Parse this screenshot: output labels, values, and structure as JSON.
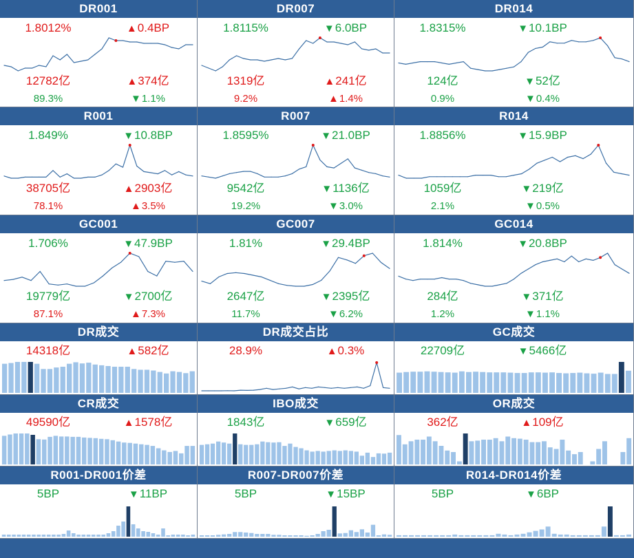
{
  "colors": {
    "header": "#2f5f98",
    "up": "#e01a1a",
    "down": "#1aa146",
    "line": "#3a6ea5",
    "bar": "#9ec3e8",
    "bar_highlight": "#1f3f66",
    "peak_dot": "#e01a1a"
  },
  "panels": [
    {
      "title": "DR001",
      "type": "line",
      "rate": "1.8012%",
      "rate_dir": "up",
      "change": "0.4BP",
      "change_dir": "up",
      "volume": "12782亿",
      "volume_dir": "up",
      "vol_change": "374亿",
      "vol_change_dir": "up",
      "share": "89.3%",
      "share_dir": "down",
      "share_change": "1.1%",
      "share_change_dir": "down",
      "chart_data": {
        "type": "line",
        "values": [
          1.7,
          1.69,
          1.66,
          1.68,
          1.68,
          1.7,
          1.69,
          1.77,
          1.74,
          1.78,
          1.72,
          1.73,
          1.74,
          1.78,
          1.82,
          1.9,
          1.88,
          1.88,
          1.87,
          1.87,
          1.86,
          1.86,
          1.86,
          1.85,
          1.83,
          1.82,
          1.85,
          1.85
        ],
        "peak_index": 16
      }
    },
    {
      "title": "DR007",
      "type": "line",
      "rate": "1.8115%",
      "rate_dir": "down",
      "change": "6.0BP",
      "change_dir": "down",
      "volume": "1319亿",
      "volume_dir": "up",
      "vol_change": "241亿",
      "vol_change_dir": "up",
      "share": "9.2%",
      "share_dir": "up",
      "share_change": "1.4%",
      "share_change_dir": "up",
      "chart_data": {
        "type": "line",
        "values": [
          1.72,
          1.7,
          1.68,
          1.71,
          1.76,
          1.79,
          1.77,
          1.76,
          1.76,
          1.75,
          1.76,
          1.77,
          1.76,
          1.77,
          1.84,
          1.9,
          1.88,
          1.92,
          1.89,
          1.89,
          1.88,
          1.87,
          1.89,
          1.84,
          1.83,
          1.84,
          1.81,
          1.81
        ],
        "peak_index": 17
      }
    },
    {
      "title": "DR014",
      "type": "line",
      "rate": "1.8315%",
      "rate_dir": "down",
      "change": "10.1BP",
      "change_dir": "down",
      "volume": "124亿",
      "volume_dir": "down",
      "vol_change": "52亿",
      "vol_change_dir": "down",
      "share": "0.9%",
      "share_dir": "down",
      "share_change": "0.4%",
      "share_change_dir": "down",
      "chart_data": {
        "type": "line",
        "values": [
          1.76,
          1.75,
          1.76,
          1.77,
          1.77,
          1.77,
          1.76,
          1.75,
          1.76,
          1.77,
          1.72,
          1.71,
          1.7,
          1.7,
          1.71,
          1.72,
          1.73,
          1.77,
          1.84,
          1.87,
          1.88,
          1.92,
          1.91,
          1.91,
          1.93,
          1.92,
          1.92,
          1.93,
          1.95,
          1.89,
          1.8,
          1.79,
          1.77
        ],
        "peak_index": 28
      }
    },
    {
      "title": "R001",
      "type": "line",
      "rate": "1.849%",
      "rate_dir": "down",
      "change": "10.8BP",
      "change_dir": "down",
      "volume": "38705亿",
      "volume_dir": "up",
      "vol_change": "2903亿",
      "vol_change_dir": "up",
      "share": "78.1%",
      "share_dir": "up",
      "share_change": "3.5%",
      "share_change_dir": "up",
      "chart_data": {
        "type": "line",
        "values": [
          1.68,
          1.66,
          1.66,
          1.67,
          1.67,
          1.67,
          1.67,
          1.73,
          1.67,
          1.7,
          1.66,
          1.66,
          1.67,
          1.67,
          1.69,
          1.73,
          1.79,
          1.76,
          1.96,
          1.77,
          1.72,
          1.71,
          1.7,
          1.73,
          1.69,
          1.72,
          1.69,
          1.68
        ],
        "peak_index": 18
      }
    },
    {
      "title": "R007",
      "type": "line",
      "rate": "1.8595%",
      "rate_dir": "down",
      "change": "21.0BP",
      "change_dir": "down",
      "volume": "9542亿",
      "volume_dir": "down",
      "vol_change": "1136亿",
      "vol_change_dir": "down",
      "share": "19.2%",
      "share_dir": "down",
      "share_change": "3.0%",
      "share_change_dir": "down",
      "chart_data": {
        "type": "line",
        "values": [
          1.8,
          1.79,
          1.78,
          1.8,
          1.82,
          1.83,
          1.84,
          1.84,
          1.82,
          1.79,
          1.79,
          1.79,
          1.8,
          1.82,
          1.86,
          1.88,
          2.07,
          1.94,
          1.88,
          1.87,
          1.91,
          1.95,
          1.87,
          1.85,
          1.83,
          1.82,
          1.8,
          1.79
        ],
        "peak_index": 16
      }
    },
    {
      "title": "R014",
      "type": "line",
      "rate": "1.8856%",
      "rate_dir": "down",
      "change": "15.9BP",
      "change_dir": "down",
      "volume": "1059亿",
      "volume_dir": "down",
      "vol_change": "219亿",
      "vol_change_dir": "down",
      "share": "2.1%",
      "share_dir": "down",
      "share_change": "0.5%",
      "share_change_dir": "down",
      "chart_data": {
        "type": "line",
        "values": [
          1.84,
          1.82,
          1.82,
          1.82,
          1.83,
          1.83,
          1.83,
          1.83,
          1.83,
          1.83,
          1.84,
          1.84,
          1.84,
          1.83,
          1.83,
          1.84,
          1.85,
          1.88,
          1.92,
          1.94,
          1.96,
          1.93,
          1.96,
          1.97,
          1.95,
          1.98,
          2.04,
          1.92,
          1.86,
          1.85,
          1.84
        ],
        "peak_index": 26
      }
    },
    {
      "title": "GC001",
      "type": "line",
      "rate": "1.706%",
      "rate_dir": "down",
      "change": "47.9BP",
      "change_dir": "down",
      "volume": "19779亿",
      "volume_dir": "down",
      "vol_change": "2700亿",
      "vol_change_dir": "down",
      "share": "87.1%",
      "share_dir": "up",
      "share_change": "7.3%",
      "share_change_dir": "up",
      "chart_data": {
        "type": "line",
        "values": [
          1.6,
          1.61,
          1.63,
          1.6,
          1.68,
          1.57,
          1.56,
          1.57,
          1.55,
          1.55,
          1.58,
          1.64,
          1.71,
          1.76,
          1.84,
          1.81,
          1.68,
          1.64,
          1.77,
          1.76,
          1.77,
          1.68
        ],
        "peak_index": 14
      }
    },
    {
      "title": "GC007",
      "type": "line",
      "rate": "1.81%",
      "rate_dir": "down",
      "change": "29.4BP",
      "change_dir": "down",
      "volume": "2647亿",
      "volume_dir": "down",
      "vol_change": "2395亿",
      "vol_change_dir": "down",
      "share": "11.7%",
      "share_dir": "down",
      "share_change": "6.2%",
      "share_change_dir": "down",
      "chart_data": {
        "type": "line",
        "values": [
          1.65,
          1.62,
          1.7,
          1.74,
          1.75,
          1.74,
          1.72,
          1.7,
          1.66,
          1.62,
          1.6,
          1.59,
          1.59,
          1.61,
          1.66,
          1.77,
          1.93,
          1.9,
          1.86,
          1.95,
          1.98,
          1.87,
          1.8
        ],
        "peak_index": 19
      }
    },
    {
      "title": "GC014",
      "type": "line",
      "rate": "1.814%",
      "rate_dir": "down",
      "change": "20.8BP",
      "change_dir": "down",
      "volume": "284亿",
      "volume_dir": "down",
      "vol_change": "371亿",
      "vol_change_dir": "down",
      "share": "1.2%",
      "share_dir": "down",
      "share_change": "1.1%",
      "share_change_dir": "down",
      "chart_data": {
        "type": "line",
        "values": [
          1.72,
          1.7,
          1.69,
          1.7,
          1.7,
          1.7,
          1.71,
          1.7,
          1.7,
          1.69,
          1.67,
          1.66,
          1.65,
          1.65,
          1.66,
          1.67,
          1.7,
          1.74,
          1.77,
          1.8,
          1.82,
          1.83,
          1.84,
          1.82,
          1.86,
          1.82,
          1.84,
          1.83,
          1.85,
          1.88,
          1.8,
          1.77,
          1.74
        ],
        "peak_index": 28
      }
    },
    {
      "title": "DR成交",
      "type": "bar",
      "value": "14318亿",
      "value_dir": "up",
      "change": "582亿",
      "change_dir": "up",
      "chart_data": {
        "type": "bar",
        "values": [
          78,
          80,
          83,
          83,
          83,
          78,
          64,
          64,
          68,
          70,
          78,
          82,
          79,
          81,
          76,
          74,
          72,
          70,
          70,
          70,
          64,
          62,
          62,
          60,
          56,
          52,
          58,
          56,
          53,
          58
        ],
        "highlight_index": 4
      }
    },
    {
      "title": "DR成交占比",
      "type": "line",
      "value": "28.9%",
      "value_dir": "up",
      "change": "0.3%",
      "change_dir": "up",
      "chart_data": {
        "type": "line",
        "values": [
          7.0,
          7.0,
          7.0,
          7.0,
          7.1,
          7.0,
          7.5,
          7.3,
          7.5,
          8.0,
          9.0,
          8.0,
          8.5,
          9.0,
          10.0,
          8.5,
          9.5,
          9.0,
          10.0,
          9.5,
          9.0,
          9.5,
          9.0,
          9.5,
          10.0,
          9.0,
          11.0,
          29.0,
          9.5,
          9.0
        ],
        "peak_index": 27
      }
    },
    {
      "title": "GC成交",
      "type": "bar",
      "value": "22709亿",
      "value_dir": "down",
      "change": "5466亿",
      "change_dir": "down",
      "chart_data": {
        "type": "bar",
        "values": [
          62,
          64,
          65,
          65,
          66,
          65,
          64,
          63,
          62,
          66,
          64,
          65,
          64,
          63,
          63,
          63,
          62,
          61,
          61,
          63,
          63,
          62,
          63,
          61,
          60,
          61,
          62,
          60,
          59,
          62,
          58,
          58,
          95,
          68
        ],
        "highlight_index": 32
      }
    },
    {
      "title": "CR成交",
      "type": "bar",
      "value": "49590亿",
      "value_dir": "up",
      "change": "1578亿",
      "change_dir": "up",
      "chart_data": {
        "type": "bar",
        "values": [
          85,
          89,
          92,
          92,
          92,
          88,
          75,
          74,
          82,
          85,
          83,
          83,
          82,
          82,
          80,
          79,
          78,
          76,
          75,
          72,
          68,
          65,
          64,
          62,
          60,
          58,
          55,
          48,
          42,
          37,
          40,
          33,
          55,
          55
        ],
        "highlight_index": 5
      }
    },
    {
      "title": "IBO成交",
      "type": "bar",
      "value": "1843亿",
      "value_dir": "down",
      "change": "659亿",
      "change_dir": "down",
      "chart_data": {
        "type": "bar",
        "values": [
          58,
          60,
          62,
          68,
          65,
          62,
          92,
          60,
          58,
          58,
          60,
          68,
          66,
          65,
          66,
          55,
          62,
          52,
          48,
          42,
          38,
          40,
          38,
          40,
          42,
          40,
          42,
          40,
          38,
          26,
          35,
          22,
          33,
          32,
          35
        ],
        "highlight_index": 6
      }
    },
    {
      "title": "OR成交",
      "type": "bar",
      "value": "362亿",
      "value_dir": "up",
      "change": "109亿",
      "change_dir": "up",
      "chart_data": {
        "type": "bar",
        "values": [
          95,
          65,
          75,
          80,
          80,
          90,
          75,
          60,
          45,
          40,
          10,
          100,
          75,
          77,
          80,
          80,
          85,
          75,
          90,
          85,
          83,
          80,
          72,
          72,
          75,
          55,
          50,
          80,
          45,
          33,
          40,
          0,
          10,
          50,
          75,
          0,
          0,
          40,
          85
        ],
        "highlight_index": 11
      }
    },
    {
      "title": "R001-DR001价差",
      "type": "bar",
      "value": "5BP",
      "value_dir": "down",
      "change": "11BP",
      "change_dir": "down",
      "chart_data": {
        "type": "bar",
        "values": [
          3,
          3,
          3,
          3,
          3,
          3,
          3,
          3,
          3,
          3,
          3,
          3,
          4,
          9,
          5,
          3,
          3,
          3,
          3,
          3,
          3,
          5,
          8,
          16,
          22,
          44,
          18,
          12,
          8,
          7,
          5,
          3,
          12,
          2,
          3,
          3,
          3,
          2,
          3
        ],
        "highlight_index": 25
      }
    },
    {
      "title": "R007-DR007价差",
      "type": "bar",
      "value": "5BP",
      "value_dir": "down",
      "change": "15BP",
      "change_dir": "down",
      "chart_data": {
        "type": "bar",
        "values": [
          3,
          3,
          3,
          4,
          5,
          6,
          10,
          10,
          9,
          8,
          6,
          6,
          6,
          4,
          4,
          3,
          3,
          3,
          3,
          2,
          3,
          6,
          12,
          15,
          66,
          7,
          8,
          14,
          10,
          16,
          9,
          26,
          3,
          5,
          4
        ],
        "highlight_index": 24
      }
    },
    {
      "title": "R014-DR014价差",
      "type": "bar",
      "value": "5BP",
      "value_dir": "down",
      "change": "6BP",
      "change_dir": "down",
      "chart_data": {
        "type": "bar",
        "values": [
          2,
          2,
          2,
          2,
          2,
          2,
          2,
          2,
          2,
          3,
          2,
          2,
          2,
          2,
          2,
          2,
          4,
          3,
          2,
          3,
          4,
          6,
          8,
          10,
          14,
          4,
          3,
          3,
          2,
          2,
          2,
          2,
          2,
          14,
          42,
          2,
          2,
          3
        ],
        "highlight_index": 34
      }
    }
  ]
}
